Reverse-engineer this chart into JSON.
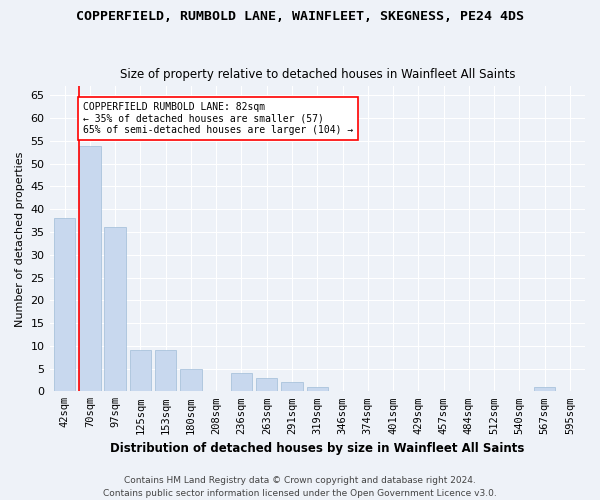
{
  "title": "COPPERFIELD, RUMBOLD LANE, WAINFLEET, SKEGNESS, PE24 4DS",
  "subtitle": "Size of property relative to detached houses in Wainfleet All Saints",
  "xlabel": "Distribution of detached houses by size in Wainfleet All Saints",
  "ylabel": "Number of detached properties",
  "categories": [
    "42sqm",
    "70sqm",
    "97sqm",
    "125sqm",
    "153sqm",
    "180sqm",
    "208sqm",
    "236sqm",
    "263sqm",
    "291sqm",
    "319sqm",
    "346sqm",
    "374sqm",
    "401sqm",
    "429sqm",
    "457sqm",
    "484sqm",
    "512sqm",
    "540sqm",
    "567sqm",
    "595sqm"
  ],
  "values": [
    38,
    54,
    36,
    9,
    9,
    5,
    0,
    4,
    3,
    2,
    1,
    0,
    0,
    0,
    0,
    0,
    0,
    0,
    0,
    1,
    0
  ],
  "bar_color": "#c8d8ee",
  "bar_edge_color": "#a0bcd8",
  "red_line_x": 1.0,
  "annotation_text": "COPPERFIELD RUMBOLD LANE: 82sqm\n← 35% of detached houses are smaller (57)\n65% of semi-detached houses are larger (104) →",
  "ylim": [
    0,
    67
  ],
  "yticks": [
    0,
    5,
    10,
    15,
    20,
    25,
    30,
    35,
    40,
    45,
    50,
    55,
    60,
    65
  ],
  "background_color": "#eef2f8",
  "grid_color": "#ffffff",
  "footer": "Contains HM Land Registry data © Crown copyright and database right 2024.\nContains public sector information licensed under the Open Government Licence v3.0."
}
